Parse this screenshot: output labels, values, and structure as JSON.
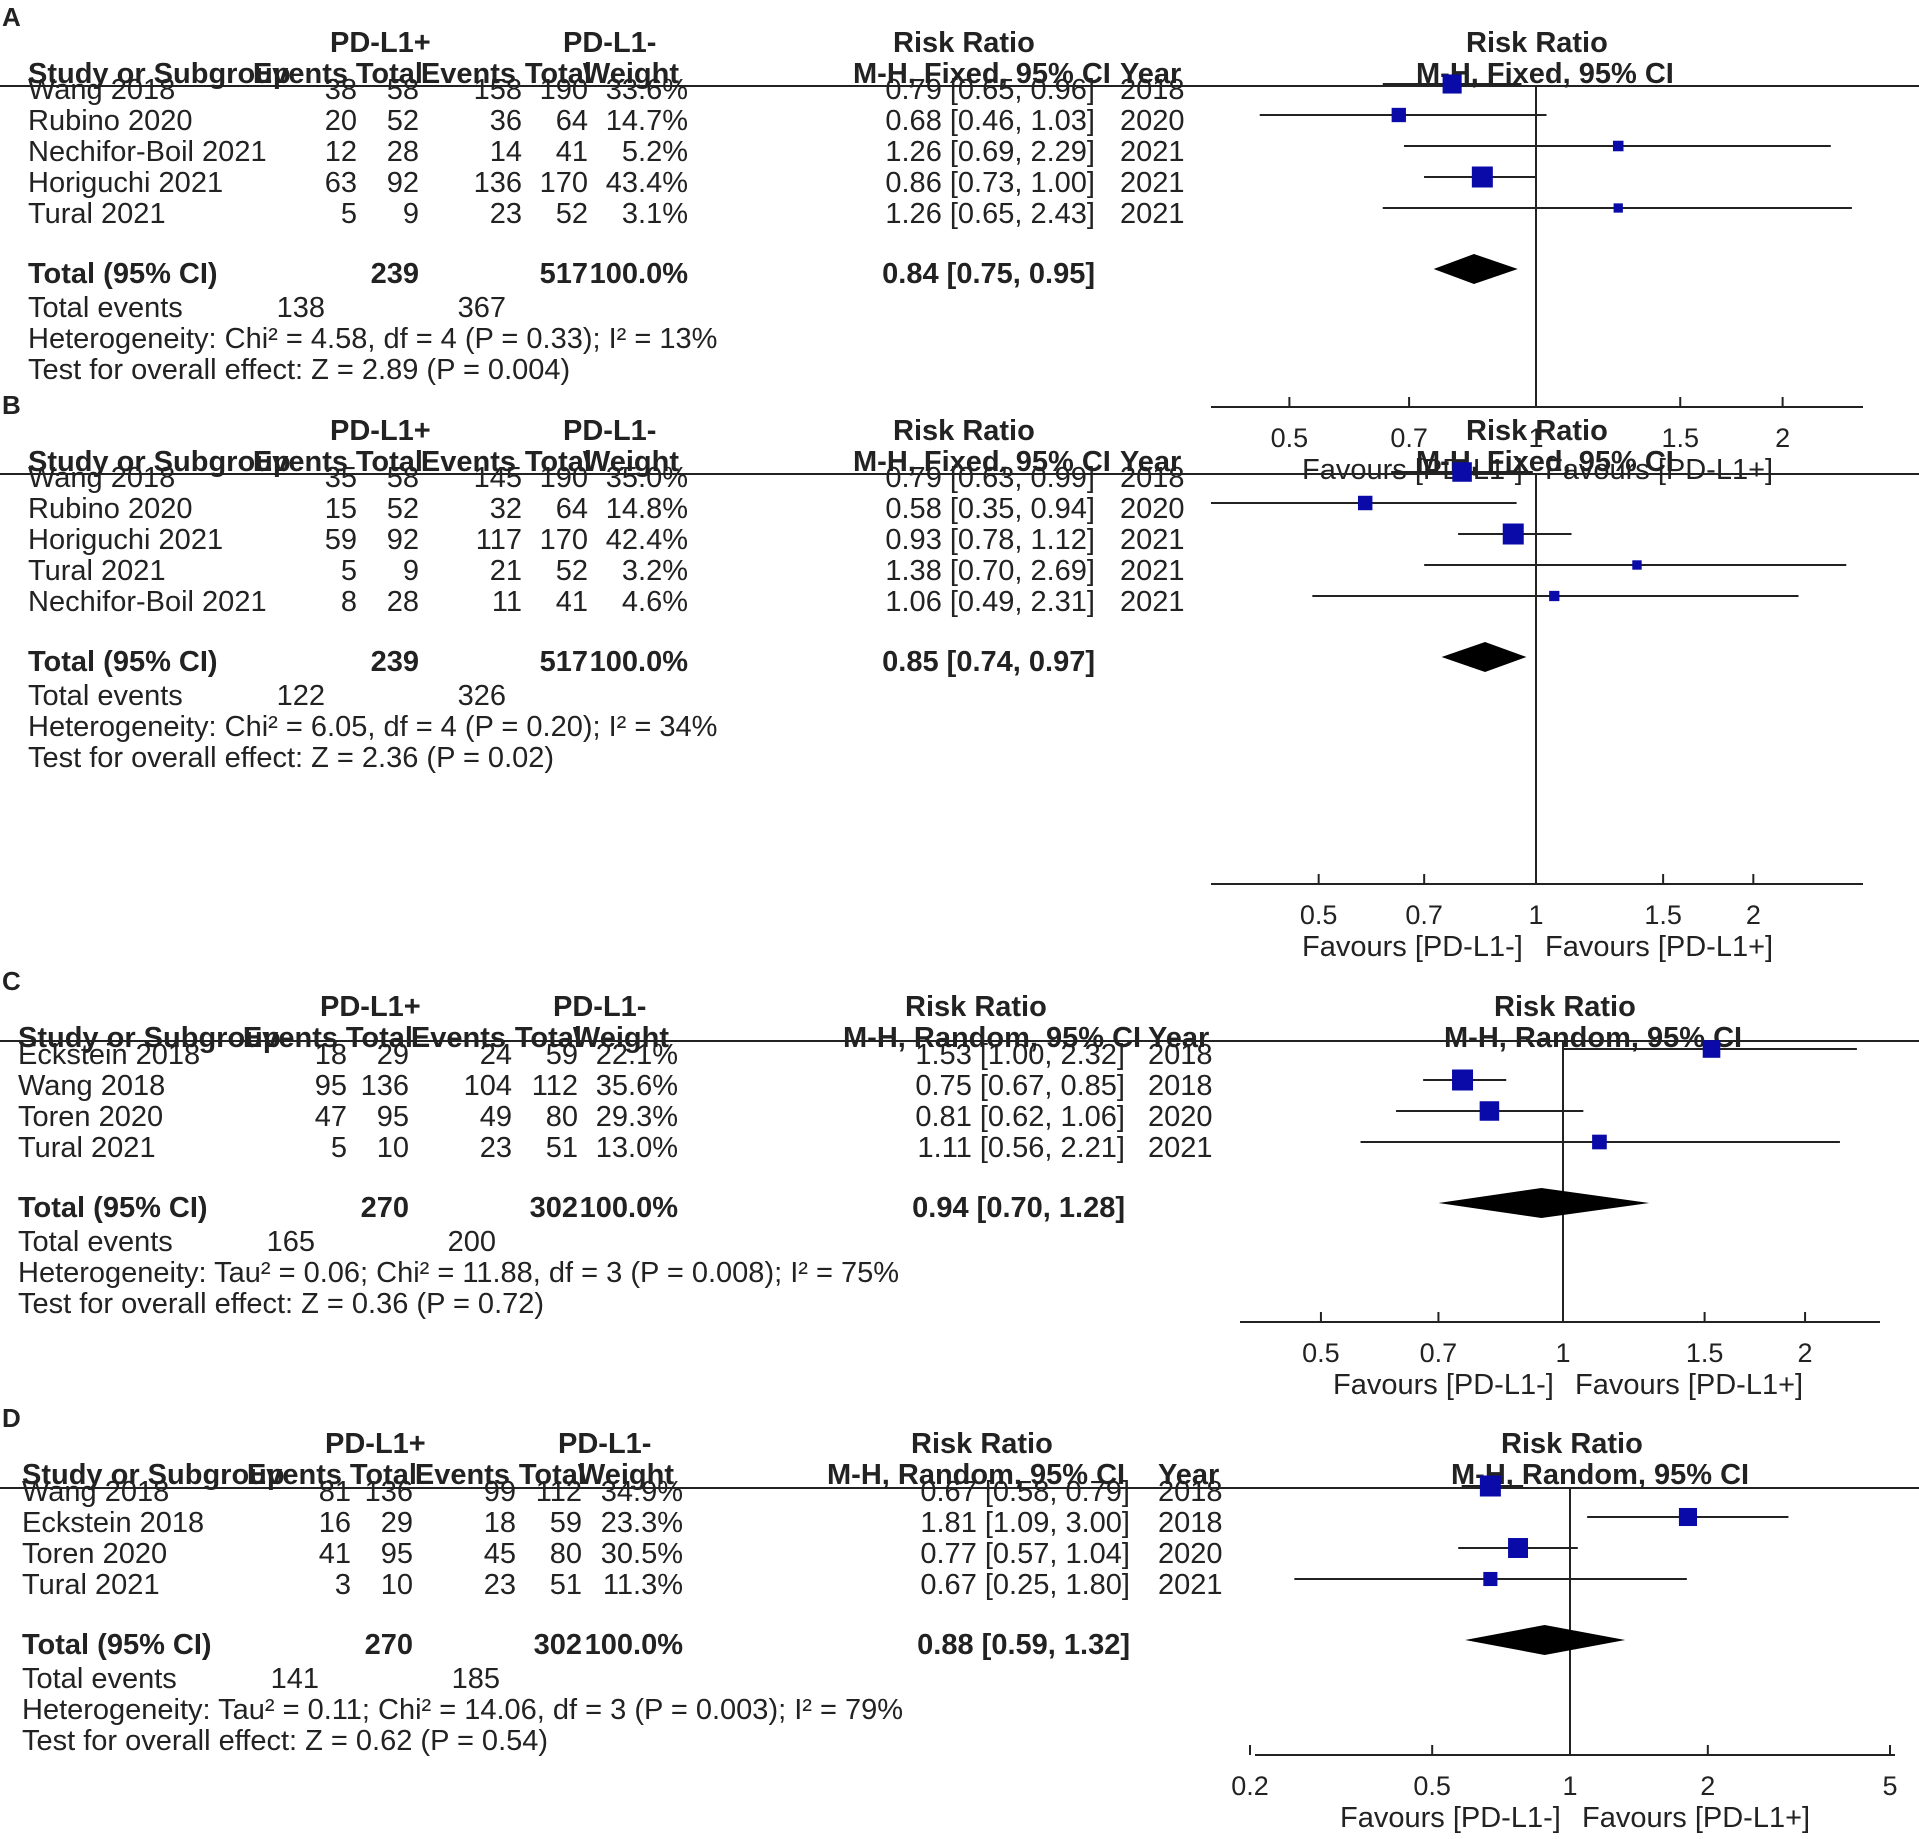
{
  "chart_data": [
    {
      "type": "forest",
      "panel_label": "A",
      "group1_label": "PD-L1+",
      "group2_label": "PD-L1-",
      "effect_label": "Risk Ratio",
      "method_label": "M-H, Fixed, 95% CI",
      "headers": {
        "study": "Study or Subgroup",
        "events": "Events",
        "total": "Total",
        "weight": "Weight",
        "year": "Year"
      },
      "studies": [
        {
          "name": "Wang 2018",
          "e1": "38",
          "n1": "58",
          "e2": "158",
          "n2": "190",
          "weight": "33.6%",
          "ci_text": "0.79 [0.65, 0.96]",
          "year": "2018",
          "rr": 0.79,
          "lo": 0.65,
          "hi": 0.96,
          "w": 33.6
        },
        {
          "name": "Rubino 2020",
          "e1": "20",
          "n1": "52",
          "e2": "36",
          "n2": "64",
          "weight": "14.7%",
          "ci_text": "0.68 [0.46, 1.03]",
          "year": "2020",
          "rr": 0.68,
          "lo": 0.46,
          "hi": 1.03,
          "w": 14.7
        },
        {
          "name": "Nechifor-Boil 2021",
          "e1": "12",
          "n1": "28",
          "e2": "14",
          "n2": "41",
          "weight": "5.2%",
          "ci_text": "1.26 [0.69, 2.29]",
          "year": "2021",
          "rr": 1.26,
          "lo": 0.69,
          "hi": 2.29,
          "w": 5.2
        },
        {
          "name": "Horiguchi 2021",
          "e1": "63",
          "n1": "92",
          "e2": "136",
          "n2": "170",
          "weight": "43.4%",
          "ci_text": "0.86 [0.73, 1.00]",
          "year": "2021",
          "rr": 0.86,
          "lo": 0.73,
          "hi": 1.0,
          "w": 43.4
        },
        {
          "name": "Tural 2021",
          "e1": "5",
          "n1": "9",
          "e2": "23",
          "n2": "52",
          "weight": "3.1%",
          "ci_text": "1.26 [0.65, 2.43]",
          "year": "2021",
          "rr": 1.26,
          "lo": 0.65,
          "hi": 2.43,
          "w": 3.1
        }
      ],
      "total": {
        "label": "Total (95% CI)",
        "n1": "239",
        "n2": "517",
        "weight": "100.0%",
        "ci_text": "0.84 [0.75, 0.95]",
        "rr": 0.84,
        "lo": 0.75,
        "hi": 0.95
      },
      "total_events": {
        "label": "Total events",
        "e1": "138",
        "e2": "367"
      },
      "heterogeneity": "Heterogeneity: Chi² = 4.58, df = 4 (P = 0.33); I² = 13%",
      "overall_test": "Test for overall effect: Z = 2.89 (P = 0.004)",
      "axis": {
        "min": 0.4,
        "max": 2.5,
        "ticks": [
          0.5,
          0.7,
          1,
          1.5,
          2
        ],
        "tick_labels": [
          "0.5",
          "0.7",
          "1",
          "1.5",
          "2"
        ],
        "scale": "log"
      },
      "favours_left": "Favours [PD-L1-]",
      "favours_right": "Favours [PD-L1+]"
    },
    {
      "type": "forest",
      "panel_label": "B",
      "group1_label": "PD-L1+",
      "group2_label": "PD-L1-",
      "effect_label": "Risk Ratio",
      "method_label": "M-H, Fixed, 95% CI",
      "headers": {
        "study": "Study or Subgroup",
        "events": "Events",
        "total": "Total",
        "weight": "Weight",
        "year": "Year"
      },
      "studies": [
        {
          "name": "Wang 2018",
          "e1": "35",
          "n1": "58",
          "e2": "145",
          "n2": "190",
          "weight": "35.0%",
          "ci_text": "0.79 [0.63, 0.99]",
          "year": "2018",
          "rr": 0.79,
          "lo": 0.63,
          "hi": 0.99,
          "w": 35.0
        },
        {
          "name": "Rubino 2020",
          "e1": "15",
          "n1": "52",
          "e2": "32",
          "n2": "64",
          "weight": "14.8%",
          "ci_text": "0.58 [0.35, 0.94]",
          "year": "2020",
          "rr": 0.58,
          "lo": 0.35,
          "hi": 0.94,
          "w": 14.8
        },
        {
          "name": "Horiguchi 2021",
          "e1": "59",
          "n1": "92",
          "e2": "117",
          "n2": "170",
          "weight": "42.4%",
          "ci_text": "0.93 [0.78, 1.12]",
          "year": "2021",
          "rr": 0.93,
          "lo": 0.78,
          "hi": 1.12,
          "w": 42.4
        },
        {
          "name": "Tural 2021",
          "e1": "5",
          "n1": "9",
          "e2": "21",
          "n2": "52",
          "weight": "3.2%",
          "ci_text": "1.38 [0.70, 2.69]",
          "year": "2021",
          "rr": 1.38,
          "lo": 0.7,
          "hi": 2.69,
          "w": 3.2
        },
        {
          "name": "Nechifor-Boil 2021",
          "e1": "8",
          "n1": "28",
          "e2": "11",
          "n2": "41",
          "weight": "4.6%",
          "ci_text": "1.06 [0.49, 2.31]",
          "year": "2021",
          "rr": 1.06,
          "lo": 0.49,
          "hi": 2.31,
          "w": 4.6
        }
      ],
      "total": {
        "label": "Total (95% CI)",
        "n1": "239",
        "n2": "517",
        "weight": "100.0%",
        "ci_text": "0.85 [0.74, 0.97]",
        "rr": 0.85,
        "lo": 0.74,
        "hi": 0.97
      },
      "total_events": {
        "label": "Total events",
        "e1": "122",
        "e2": "326"
      },
      "heterogeneity": "Heterogeneity: Chi² = 6.05, df = 4 (P = 0.20); I² = 34%",
      "overall_test": "Test for overall effect: Z = 2.36 (P = 0.02)",
      "axis": {
        "min": 0.35,
        "max": 2.8,
        "ticks": [
          0.5,
          0.7,
          1,
          1.5,
          2
        ],
        "tick_labels": [
          "0.5",
          "0.7",
          "1",
          "1.5",
          "2"
        ],
        "scale": "log"
      },
      "favours_left": "Favours [PD-L1-]",
      "favours_right": "Favours [PD-L1+]"
    },
    {
      "type": "forest",
      "panel_label": "C",
      "group1_label": "PD-L1+",
      "group2_label": "PD-L1-",
      "effect_label": "Risk Ratio",
      "method_label": "M-H, Random, 95% CI",
      "headers": {
        "study": "Study or Subgroup",
        "events": "Events",
        "total": "Total",
        "weight": "Weight",
        "year": "Year"
      },
      "studies": [
        {
          "name": "Eckstein 2018",
          "e1": "18",
          "n1": "29",
          "e2": "24",
          "n2": "59",
          "weight": "22.1%",
          "ci_text": "1.53 [1.00, 2.32]",
          "year": "2018",
          "rr": 1.53,
          "lo": 1.0,
          "hi": 2.32,
          "w": 22.1
        },
        {
          "name": "Wang 2018",
          "e1": "95",
          "n1": "136",
          "e2": "104",
          "n2": "112",
          "weight": "35.6%",
          "ci_text": "0.75 [0.67, 0.85]",
          "year": "2018",
          "rr": 0.75,
          "lo": 0.67,
          "hi": 0.85,
          "w": 35.6
        },
        {
          "name": "Toren 2020",
          "e1": "47",
          "n1": "95",
          "e2": "49",
          "n2": "80",
          "weight": "29.3%",
          "ci_text": "0.81 [0.62, 1.06]",
          "year": "2020",
          "rr": 0.81,
          "lo": 0.62,
          "hi": 1.06,
          "w": 29.3
        },
        {
          "name": "Tural 2021",
          "e1": "5",
          "n1": "10",
          "e2": "23",
          "n2": "51",
          "weight": "13.0%",
          "ci_text": "1.11 [0.56, 2.21]",
          "year": "2021",
          "rr": 1.11,
          "lo": 0.56,
          "hi": 2.21,
          "w": 13.0
        }
      ],
      "total": {
        "label": "Total (95% CI)",
        "n1": "270",
        "n2": "302",
        "weight": "100.0%",
        "ci_text": "0.94 [0.70, 1.28]",
        "rr": 0.94,
        "lo": 0.7,
        "hi": 1.28
      },
      "total_events": {
        "label": "Total events",
        "e1": "165",
        "e2": "200"
      },
      "heterogeneity": "Heterogeneity: Tau² = 0.06; Chi² = 11.88, df = 3 (P = 0.008); I² = 75%",
      "overall_test": "Test for overall effect: Z = 0.36 (P = 0.72)",
      "axis": {
        "min": 0.4,
        "max": 2.5,
        "ticks": [
          0.5,
          0.7,
          1,
          1.5,
          2
        ],
        "tick_labels": [
          "0.5",
          "0.7",
          "1",
          "1.5",
          "2"
        ],
        "scale": "log"
      },
      "favours_left": "Favours [PD-L1-]",
      "favours_right": "Favours [PD-L1+]"
    },
    {
      "type": "forest",
      "panel_label": "D",
      "group1_label": "PD-L1+",
      "group2_label": "PD-L1-",
      "effect_label": "Risk Ratio",
      "method_label": "M-H, Random, 95% CI",
      "headers": {
        "study": "Study or Subgroup",
        "events": "Events",
        "total": "Total",
        "weight": "Weight",
        "year": "Year"
      },
      "studies": [
        {
          "name": "Wang 2018",
          "e1": "81",
          "n1": "136",
          "e2": "99",
          "n2": "112",
          "weight": "34.9%",
          "ci_text": "0.67 [0.58, 0.79]",
          "year": "2018",
          "rr": 0.67,
          "lo": 0.58,
          "hi": 0.79,
          "w": 34.9
        },
        {
          "name": "Eckstein 2018",
          "e1": "16",
          "n1": "29",
          "e2": "18",
          "n2": "59",
          "weight": "23.3%",
          "ci_text": "1.81 [1.09, 3.00]",
          "year": "2018",
          "rr": 1.81,
          "lo": 1.09,
          "hi": 3.0,
          "w": 23.3
        },
        {
          "name": "Toren 2020",
          "e1": "41",
          "n1": "95",
          "e2": "45",
          "n2": "80",
          "weight": "30.5%",
          "ci_text": "0.77 [0.57, 1.04]",
          "year": "2020",
          "rr": 0.77,
          "lo": 0.57,
          "hi": 1.04,
          "w": 30.5
        },
        {
          "name": "Tural 2021",
          "e1": "3",
          "n1": "10",
          "e2": "23",
          "n2": "51",
          "weight": "11.3%",
          "ci_text": "0.67 [0.25, 1.80]",
          "year": "2021",
          "rr": 0.67,
          "lo": 0.25,
          "hi": 1.8,
          "w": 11.3
        }
      ],
      "total": {
        "label": "Total (95% CI)",
        "n1": "270",
        "n2": "302",
        "weight": "100.0%",
        "ci_text": "0.88 [0.59, 1.32]",
        "rr": 0.88,
        "lo": 0.59,
        "hi": 1.32
      },
      "total_events": {
        "label": "Total events",
        "e1": "141",
        "e2": "185"
      },
      "heterogeneity": "Heterogeneity: Tau² = 0.11; Chi² = 14.06, df = 3 (P = 0.003); I² = 79%",
      "overall_test": "Test for overall effect: Z = 0.62 (P = 0.54)",
      "axis": {
        "min": 0.2,
        "max": 5,
        "ticks": [
          0.2,
          0.5,
          1,
          2,
          5
        ],
        "tick_labels": [
          "0.2",
          "0.5",
          "1",
          "2",
          "5"
        ],
        "scale": "log"
      },
      "favours_left": "Favours [PD-L1-]",
      "favours_right": "Favours [PD-L1+]"
    }
  ]
}
